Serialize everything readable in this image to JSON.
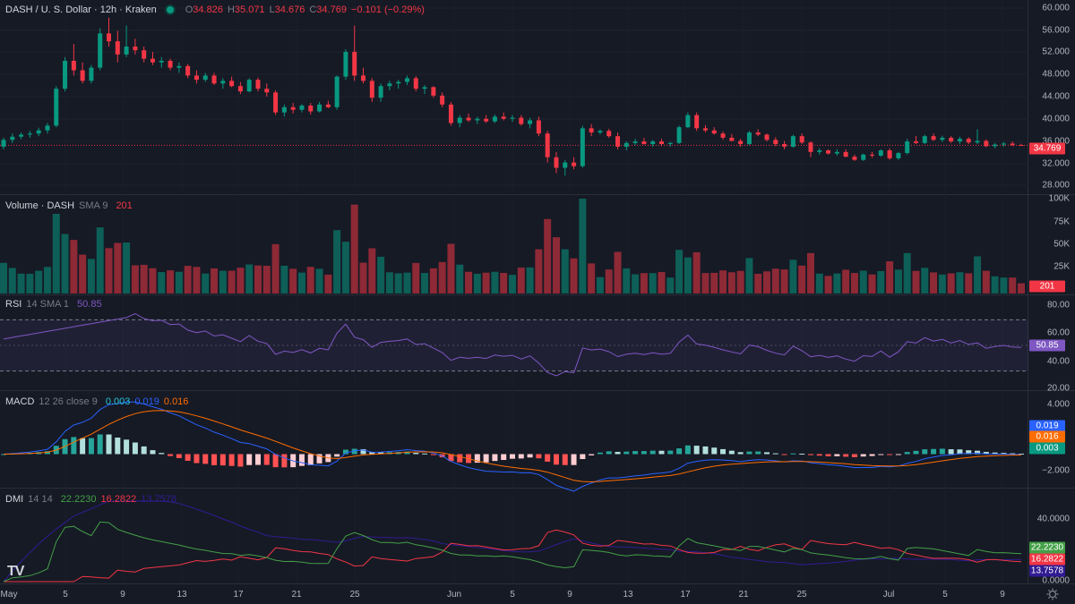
{
  "header": {
    "symbol": "DASH / U. S. Dollar · 12h · Kraken",
    "ohlc": {
      "o_label": "O",
      "o": "34.826",
      "h_label": "H",
      "h": "35.071",
      "l_label": "L",
      "l": "34.676",
      "c_label": "C",
      "c": "34.769",
      "change": "−0.101 (−0.29%)"
    },
    "last_price": "34.769",
    "colors": {
      "up": "#089981",
      "down": "#f23645",
      "text": "#d1d4dc"
    }
  },
  "price_axis": {
    "ticks": [
      "60.000",
      "56.000",
      "52.000",
      "48.000",
      "44.000",
      "40.000",
      "36.000",
      "32.000",
      "28.000"
    ]
  },
  "volume": {
    "title": "Volume · DASH",
    "sma": "SMA 9",
    "value": "201",
    "ticks": [
      "100K",
      "75K",
      "50K",
      "25K"
    ],
    "badge": "201"
  },
  "rsi": {
    "title": "RSI",
    "params": "14 SMA 1",
    "value": "50.85",
    "ticks": [
      "80.00",
      "60.00",
      "40.00",
      "20.00"
    ],
    "badge": "50.85",
    "line_color": "#7e57c2"
  },
  "macd": {
    "title": "MACD",
    "params": "12 26 close 9",
    "v1": "0.003",
    "v2": "0.019",
    "v3": "0.016",
    "ticks": [
      "4.000",
      "−2.000"
    ],
    "badges": [
      "0.019",
      "0.016",
      "0.003"
    ],
    "macd_color": "#2962ff",
    "signal_color": "#ff6d00"
  },
  "dmi": {
    "title": "DMI",
    "params": "14 14",
    "v1": "22.2230",
    "v2": "16.2822",
    "v3": "13.7578",
    "ticks": [
      "40.0000",
      "0.0000"
    ],
    "badges": [
      "22.2230",
      "16.2822",
      "13.7578"
    ],
    "plus_color": "#43a047",
    "minus_color": "#f23645",
    "adx_color": "#311b92"
  },
  "time_axis": [
    "May",
    "5",
    "9",
    "13",
    "17",
    "21",
    "25",
    "Jun",
    "5",
    "9",
    "13",
    "17",
    "21",
    "25",
    "Jul",
    "5",
    "9"
  ],
  "watermark": "TV",
  "chart_data": {
    "type": "candlestick",
    "candles_ohlc": [
      [
        34.5,
        36.2,
        34.0,
        35.8
      ],
      [
        35.8,
        37.0,
        35.2,
        36.4
      ],
      [
        36.4,
        37.2,
        35.9,
        36.8
      ],
      [
        36.8,
        37.5,
        36.2,
        37.0
      ],
      [
        37.0,
        38.1,
        36.5,
        37.6
      ],
      [
        37.6,
        39.0,
        37.0,
        38.5
      ],
      [
        38.5,
        46.0,
        38.2,
        45.5
      ],
      [
        45.5,
        51.5,
        45.0,
        50.8
      ],
      [
        50.8,
        54.0,
        48.0,
        49.0
      ],
      [
        49.0,
        50.5,
        46.5,
        47.0
      ],
      [
        47.0,
        50.0,
        46.5,
        49.5
      ],
      [
        49.5,
        57.0,
        49.0,
        56.0
      ],
      [
        56.0,
        59.0,
        53.5,
        54.5
      ],
      [
        54.5,
        56.5,
        50.5,
        52.0
      ],
      [
        52.0,
        57.5,
        51.5,
        53.5
      ],
      [
        53.5,
        55.0,
        52.0,
        52.8
      ],
      [
        52.8,
        53.5,
        50.5,
        51.2
      ],
      [
        51.2,
        52.5,
        50.0,
        50.5
      ],
      [
        50.5,
        51.5,
        49.5,
        50.8
      ],
      [
        50.8,
        51.2,
        49.0,
        49.5
      ],
      [
        49.5,
        50.5,
        48.5,
        49.8
      ],
      [
        49.8,
        50.2,
        47.5,
        48.0
      ],
      [
        48.0,
        49.0,
        46.5,
        47.2
      ],
      [
        47.2,
        48.5,
        46.8,
        48.0
      ],
      [
        48.0,
        48.5,
        46.2,
        46.5
      ],
      [
        46.5,
        47.5,
        45.5,
        47.0
      ],
      [
        47.0,
        47.8,
        45.8,
        46.0
      ],
      [
        46.0,
        46.8,
        44.5,
        45.0
      ],
      [
        45.0,
        47.5,
        44.8,
        47.2
      ],
      [
        47.2,
        47.6,
        45.0,
        45.5
      ],
      [
        45.5,
        46.5,
        44.0,
        44.8
      ],
      [
        44.8,
        45.2,
        40.5,
        41.0
      ],
      [
        41.0,
        42.5,
        40.2,
        42.0
      ],
      [
        42.0,
        42.8,
        40.8,
        41.5
      ],
      [
        41.5,
        42.6,
        41.0,
        42.3
      ],
      [
        42.3,
        42.8,
        40.6,
        41.2
      ],
      [
        41.2,
        43.0,
        41.0,
        42.5
      ],
      [
        42.5,
        43.2,
        41.8,
        42.0
      ],
      [
        42.0,
        48.0,
        41.5,
        47.8
      ],
      [
        47.8,
        53.0,
        47.2,
        52.5
      ],
      [
        52.5,
        57.5,
        47.0,
        48.0
      ],
      [
        48.0,
        49.5,
        46.5,
        47.0
      ],
      [
        47.0,
        47.5,
        43.0,
        43.8
      ],
      [
        43.8,
        46.5,
        43.0,
        46.0
      ],
      [
        46.0,
        47.0,
        45.2,
        46.5
      ],
      [
        46.5,
        47.2,
        45.5,
        46.8
      ],
      [
        46.8,
        48.0,
        46.2,
        47.5
      ],
      [
        47.5,
        47.9,
        45.0,
        45.5
      ],
      [
        45.5,
        46.2,
        44.5,
        45.8
      ],
      [
        45.8,
        46.0,
        43.8,
        44.2
      ],
      [
        44.2,
        44.8,
        42.0,
        42.5
      ],
      [
        42.5,
        43.0,
        38.5,
        39.0
      ],
      [
        39.0,
        40.5,
        38.2,
        40.0
      ],
      [
        40.0,
        40.8,
        39.2,
        39.5
      ],
      [
        39.5,
        40.2,
        38.8,
        39.8
      ],
      [
        39.8,
        40.5,
        39.0,
        39.3
      ],
      [
        39.3,
        40.6,
        39.0,
        40.2
      ],
      [
        40.2,
        41.0,
        39.5,
        39.8
      ],
      [
        39.8,
        40.5,
        39.2,
        40.0
      ],
      [
        40.0,
        40.5,
        38.5,
        38.8
      ],
      [
        38.8,
        40.0,
        38.0,
        39.5
      ],
      [
        39.5,
        40.2,
        36.5,
        37.0
      ],
      [
        37.0,
        37.5,
        31.5,
        32.5
      ],
      [
        32.5,
        33.5,
        29.5,
        30.5
      ],
      [
        30.5,
        32.0,
        29.0,
        31.5
      ],
      [
        31.5,
        32.5,
        30.2,
        30.8
      ],
      [
        30.8,
        38.5,
        30.5,
        38.0
      ],
      [
        38.0,
        38.8,
        36.5,
        37.2
      ],
      [
        37.2,
        37.8,
        36.8,
        37.5
      ],
      [
        37.5,
        37.9,
        36.2,
        36.5
      ],
      [
        36.5,
        37.2,
        34.0,
        34.5
      ],
      [
        34.5,
        35.5,
        33.8,
        35.2
      ],
      [
        35.2,
        36.0,
        34.8,
        35.5
      ],
      [
        35.5,
        36.2,
        34.9,
        35.0
      ],
      [
        35.0,
        35.8,
        34.5,
        35.5
      ],
      [
        35.5,
        36.0,
        34.6,
        35.0
      ],
      [
        35.0,
        35.4,
        34.5,
        35.2
      ],
      [
        35.2,
        38.5,
        35.0,
        38.2
      ],
      [
        38.2,
        41.0,
        38.0,
        40.5
      ],
      [
        40.5,
        41.0,
        37.5,
        38.0
      ],
      [
        38.0,
        38.6,
        37.2,
        37.6
      ],
      [
        37.6,
        38.2,
        36.8,
        37.0
      ],
      [
        37.0,
        37.4,
        35.8,
        36.2
      ],
      [
        36.2,
        36.9,
        35.5,
        35.6
      ],
      [
        35.6,
        36.0,
        34.5,
        35.0
      ],
      [
        35.0,
        37.5,
        34.8,
        37.2
      ],
      [
        37.2,
        37.8,
        36.5,
        36.8
      ],
      [
        36.8,
        37.0,
        35.5,
        35.8
      ],
      [
        35.8,
        36.3,
        34.6,
        35.0
      ],
      [
        35.0,
        35.6,
        34.0,
        34.5
      ],
      [
        34.5,
        36.8,
        34.3,
        36.5
      ],
      [
        36.5,
        37.0,
        35.0,
        35.3
      ],
      [
        35.3,
        35.5,
        32.5,
        33.5
      ],
      [
        33.5,
        34.2,
        33.0,
        33.8
      ],
      [
        33.8,
        34.0,
        33.0,
        33.2
      ],
      [
        33.2,
        34.0,
        32.8,
        33.5
      ],
      [
        33.5,
        34.0,
        32.5,
        32.6
      ],
      [
        32.6,
        33.0,
        31.8,
        32.0
      ],
      [
        32.0,
        33.2,
        31.8,
        33.0
      ],
      [
        33.0,
        33.5,
        32.4,
        32.8
      ],
      [
        32.8,
        34.0,
        32.6,
        33.8
      ],
      [
        33.8,
        34.2,
        32.0,
        32.3
      ],
      [
        32.3,
        33.5,
        32.0,
        33.3
      ],
      [
        33.3,
        36.0,
        33.0,
        35.5
      ],
      [
        35.5,
        36.5,
        35.0,
        35.2
      ],
      [
        35.2,
        36.8,
        35.0,
        36.5
      ],
      [
        36.5,
        37.0,
        35.6,
        35.8
      ],
      [
        35.8,
        36.6,
        35.4,
        36.2
      ],
      [
        36.2,
        36.5,
        35.2,
        35.5
      ],
      [
        35.5,
        36.4,
        35.0,
        36.0
      ],
      [
        36.0,
        36.3,
        35.0,
        35.3
      ],
      [
        35.3,
        37.8,
        35.0,
        35.6
      ],
      [
        35.6,
        35.9,
        34.4,
        34.6
      ],
      [
        34.6,
        35.2,
        34.2,
        34.9
      ],
      [
        34.9,
        35.4,
        34.5,
        35.1
      ],
      [
        35.1,
        35.5,
        34.6,
        34.826
      ],
      [
        34.826,
        35.071,
        34.676,
        34.769
      ]
    ],
    "ylim": [
      26,
      62
    ]
  }
}
